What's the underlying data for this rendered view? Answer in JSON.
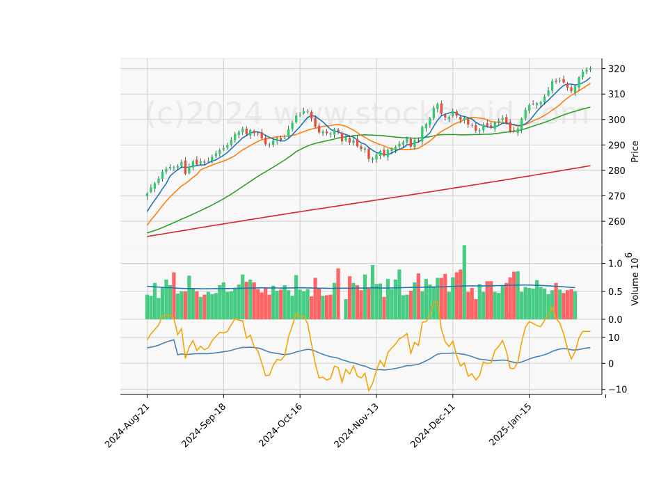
{
  "watermark": "(c)2024 www.stockdroid.com",
  "chart_data": [
    {
      "type": "candlestick",
      "ylabel": "Price",
      "ylim": [
        251,
        324
      ],
      "yticks": [
        260,
        270,
        280,
        290,
        300,
        310,
        320
      ],
      "grid": true,
      "x_range": [
        -7,
        119
      ],
      "x_ticks": [
        0,
        20,
        40,
        60,
        80,
        100
      ],
      "x_tick_labels": [
        "2024-Aug-21",
        "2024-Sep-18",
        "2024-Oct-16",
        "2024-Nov-13",
        "2024-Dec-11",
        "2025-Jan-15"
      ],
      "up_color": "#2ecc71",
      "down_color": "#e74c3c",
      "closes": [
        271,
        273.3,
        275,
        276.8,
        279.5,
        280.6,
        281.4,
        281.3,
        281.7,
        283.3,
        278.6,
        281.5,
        283.6,
        282.3,
        283.5,
        283.1,
        283.7,
        285.4,
        286.7,
        287.9,
        288.8,
        289.9,
        292,
        294.3,
        295.2,
        296.4,
        294.3,
        295.9,
        294.6,
        294.4,
        292.6,
        290.3,
        290.2,
        291.8,
        292.6,
        292,
        292.7,
        296.2,
        298.6,
        301.6,
        301.9,
        303.3,
        303.3,
        300.4,
        297.2,
        294.9,
        295.3,
        294.6,
        294.5,
        296.2,
        295.3,
        291.4,
        292.7,
        290.9,
        291.9,
        289.5,
        288.4,
        288.7,
        284.5,
        284.7,
        286.2,
        287.6,
        285.8,
        288.1,
        288.6,
        289.3,
        290.5,
        291.1,
        292.5,
        289.3,
        291.9,
        291.7,
        297.1,
        298.3,
        300.4,
        304.5,
        306.1,
        302.3,
        300.8,
        301.1,
        303.2,
        301.5,
        299.9,
        300.7,
        298,
        297.8,
        295.6,
        295.8,
        298,
        297.3,
        296.8,
        298.8,
        299.5,
        300.6,
        298.7,
        295.3,
        295.2,
        296.5,
        300.4,
        303.8,
        305.7,
        306.1,
        306.4,
        306.8,
        309,
        311.5,
        315.1,
        314.8,
        315.4,
        314.5,
        312.5,
        311.1,
        313.1,
        316.6,
        318.8,
        319.6,
        320.1
      ],
      "volume": {
        "ylabel": "Volume",
        "multiplier_label": "10",
        "multiplier_exp": "6",
        "ylim": [
          0,
          1.33
        ],
        "yticks": [
          0.0,
          0.5,
          1.0
        ],
        "values": [
          0.44,
          0.42,
          0.65,
          0.38,
          0.57,
          0.71,
          0.61,
          0.84,
          0.46,
          0.5,
          0.5,
          0.78,
          0.55,
          0.5,
          0.4,
          0.44,
          0.49,
          0.45,
          0.47,
          0.61,
          0.66,
          0.49,
          0.5,
          0.56,
          0.62,
          0.8,
          0.67,
          0.71,
          0.66,
          0.54,
          0.48,
          0.56,
          0.44,
          0.6,
          0.51,
          0.53,
          0.61,
          0.52,
          0.42,
          0.79,
          0.53,
          0.5,
          0.54,
          0.41,
          0.74,
          0.55,
          0.42,
          0.43,
          0.44,
          0.65,
          0.91,
          0.0,
          0.36,
          0.77,
          0.65,
          0.61,
          0.52,
          0.8,
          0.55,
          0.97,
          0.63,
          0.64,
          0.4,
          0.72,
          0.54,
          0.71,
          0.89,
          0.43,
          0.44,
          0.51,
          0.66,
          0.82,
          0.5,
          0.72,
          0.62,
          0.59,
          0.74,
          0.74,
          0.81,
          0.49,
          0.75,
          0.84,
          0.89,
          1.33,
          0.49,
          0.56,
          0.36,
          0.63,
          0.49,
          0.68,
          0.68,
          0.49,
          0.47,
          0.61,
          0.65,
          0.75,
          0.85,
          0.86,
          0.49,
          0.58,
          0.56,
          0.55,
          0.7,
          0.58,
          0.55,
          0.45,
          0.52,
          0.65,
          0.53,
          0.47,
          0.52,
          0.54,
          0.5
        ],
        "avg": [
          0.59,
          0.585,
          0.58,
          0.575,
          0.57,
          0.567,
          0.565,
          0.56,
          0.555,
          0.552,
          0.55,
          0.55,
          0.55,
          0.548,
          0.546,
          0.545,
          0.546,
          0.547,
          0.548,
          0.548,
          0.548,
          0.55,
          0.551,
          0.552,
          0.553,
          0.555,
          0.557,
          0.558,
          0.56,
          0.562,
          0.563,
          0.562,
          0.561,
          0.56,
          0.559,
          0.558,
          0.558,
          0.56,
          0.561,
          0.562,
          0.563,
          0.563,
          0.562,
          0.56,
          0.558,
          0.556,
          0.555,
          0.554,
          0.553,
          0.555,
          0.556,
          0.556,
          0.555,
          0.556,
          0.557,
          0.558,
          0.558,
          0.56,
          0.561,
          0.562,
          0.562,
          0.561,
          0.56,
          0.56,
          0.56,
          0.562,
          0.564,
          0.566,
          0.568,
          0.569,
          0.57,
          0.571,
          0.572,
          0.574,
          0.575,
          0.576,
          0.578,
          0.58,
          0.582,
          0.585,
          0.588,
          0.59,
          0.592,
          0.595,
          0.597,
          0.598,
          0.597,
          0.596,
          0.595,
          0.596,
          0.598,
          0.6,
          0.601,
          0.603,
          0.605,
          0.608,
          0.61,
          0.612,
          0.613,
          0.613,
          0.612,
          0.61,
          0.608,
          0.605,
          0.602,
          0.598,
          0.594,
          0.59,
          0.585,
          0.58,
          0.575,
          0.57,
          0.565
        ]
      },
      "indicator": {
        "ylim": [
          -12,
          17
        ],
        "yticks": [
          -10,
          0,
          10
        ],
        "blue_color": "#4682b4",
        "orange_color": "#f5a300"
      }
    }
  ]
}
